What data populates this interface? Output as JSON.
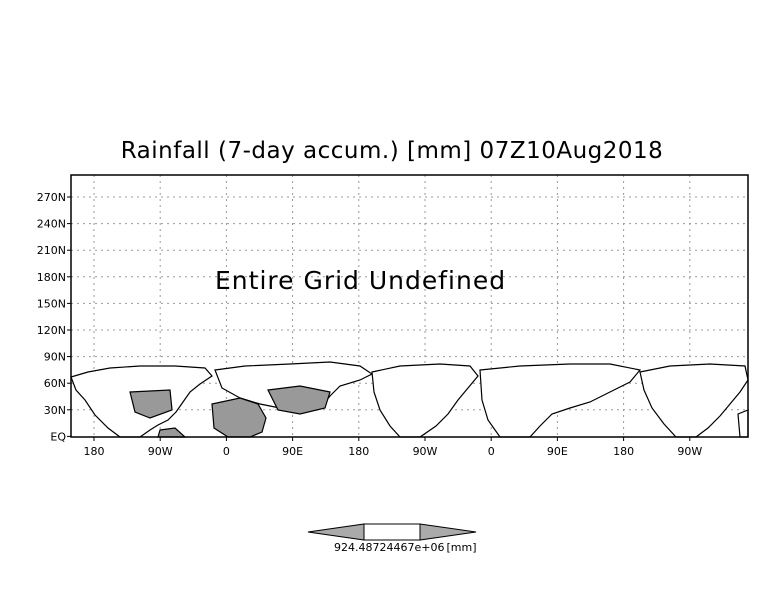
{
  "title": "Rainfall (7-day accum.) [mm] 07Z10Aug2018",
  "annotation": "Entire Grid Undefined",
  "map": {
    "y_ticks": [
      "270N",
      "240N",
      "210N",
      "180N",
      "150N",
      "120N",
      "90N",
      "60N",
      "30N",
      "EQ"
    ],
    "x_ticks": [
      "180",
      "90W",
      "0",
      "90E",
      "180",
      "90W",
      "0",
      "90E",
      "180",
      "90W"
    ],
    "land_color": "#ffffff",
    "shaded_color": "#999999",
    "grid_color": "#999999",
    "frame_color": "#000000"
  },
  "colorbar": {
    "label": "924.48724467e+06",
    "unit": "[mm]",
    "fill_color": "#aaaaaa"
  }
}
